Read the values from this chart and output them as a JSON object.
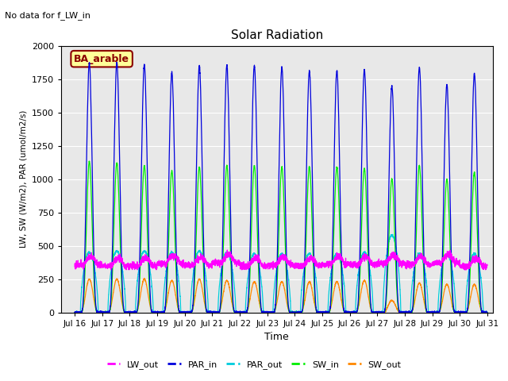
{
  "title": "Solar Radiation",
  "top_left_text": "No data for f_LW_in",
  "legend_box_text": "BA_arable",
  "xlabel": "Time",
  "ylabel": "LW, SW (W/m2), PAR (umol/m2/s)",
  "ylim": [
    0,
    2000
  ],
  "xlim_days": [
    15.5,
    31.2
  ],
  "n_days": 15,
  "colors": {
    "LW_out": "#ff00ff",
    "PAR_in": "#0000dd",
    "PAR_out": "#00ccdd",
    "SW_in": "#00ee00",
    "SW_out": "#ff8800"
  },
  "background_color": "#e8e8e8",
  "grid_color": "#ffffff",
  "tick_labels": [
    "Jul 16",
    "Jul 17",
    "Jul 18",
    "Jul 19",
    "Jul 20",
    "Jul 21",
    "Jul 22",
    "Jul 23",
    "Jul 24",
    "Jul 25",
    "Jul 26",
    "Jul 27",
    "Jul 28",
    "Jul 29",
    "Jul 30",
    "Jul 31"
  ],
  "tick_positions": [
    16,
    17,
    18,
    19,
    20,
    21,
    22,
    23,
    24,
    25,
    26,
    27,
    28,
    29,
    30,
    31
  ],
  "par_in_peaks": [
    1870,
    1875,
    1860,
    1800,
    1850,
    1850,
    1850,
    1840,
    1810,
    1810,
    1820,
    1700,
    1840,
    1710,
    1790
  ],
  "sw_in_peaks": [
    1130,
    1120,
    1100,
    1060,
    1090,
    1100,
    1100,
    1090,
    1090,
    1090,
    1080,
    1000,
    1100,
    1000,
    1050
  ],
  "sw_out_peaks": [
    250,
    250,
    250,
    240,
    250,
    240,
    230,
    230,
    230,
    230,
    240,
    90,
    220,
    210,
    210
  ],
  "par_out_peaks": [
    450,
    460,
    460,
    450,
    460,
    450,
    440,
    440,
    440,
    440,
    450,
    580,
    440,
    440,
    440
  ]
}
